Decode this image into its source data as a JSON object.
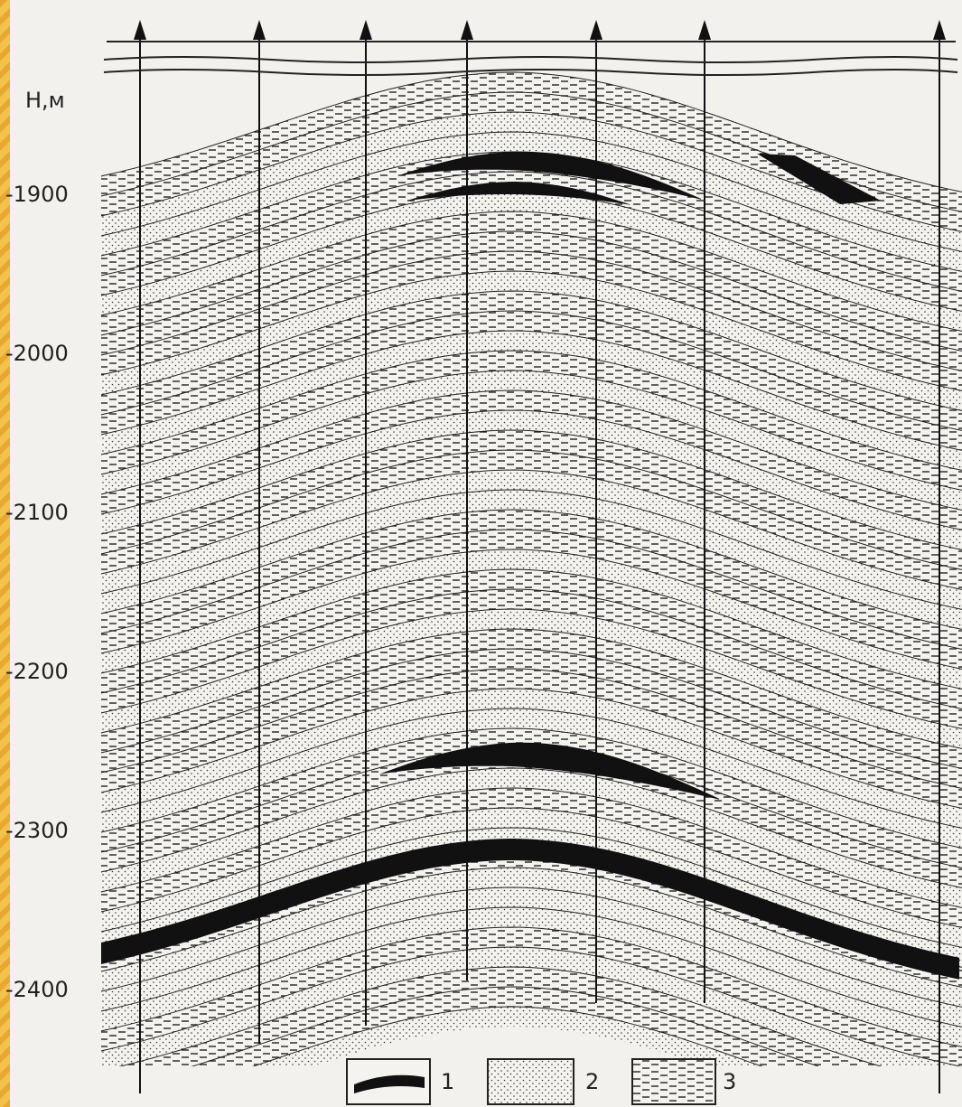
{
  "axis": {
    "label": "Н,м",
    "ticks": [
      "-1900",
      "-2000",
      "-2100",
      "-2200",
      "-2300",
      "-2400"
    ]
  },
  "legend": [
    "1",
    "2",
    "3"
  ]
}
